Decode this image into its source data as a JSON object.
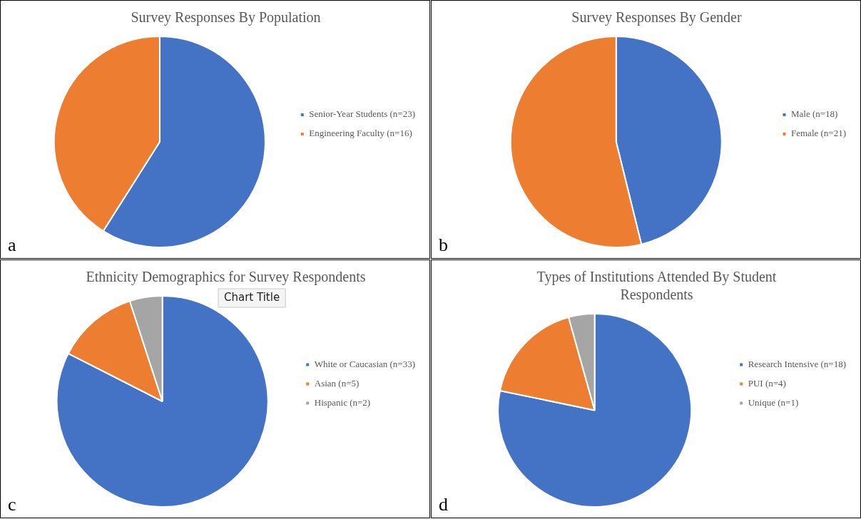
{
  "chart_data": [
    {
      "type": "pie",
      "title": "Survey Responses By Population",
      "categories": [
        "Senior-Year Students (n=23)",
        "Engineering Faculty (n=16)"
      ],
      "values": [
        23,
        16
      ],
      "colors": [
        "#4472c4",
        "#ed7d31"
      ],
      "legend": "right",
      "annotations": [
        "a"
      ]
    },
    {
      "type": "pie",
      "title": "Survey Responses By Gender",
      "categories": [
        "Male (n=18)",
        "Female (n=21)"
      ],
      "values": [
        18,
        21
      ],
      "colors": [
        "#4472c4",
        "#ed7d31"
      ],
      "legend": "right",
      "annotations": [
        "b"
      ]
    },
    {
      "type": "pie",
      "title": "Ethnicity Demographics for Survey Respondents",
      "categories": [
        "White or Caucasian (n=33)",
        "Asian (n=5)",
        "Hispanic (n=2)"
      ],
      "values": [
        33,
        5,
        2
      ],
      "colors": [
        "#4472c4",
        "#ed7d31",
        "#a5a5a5"
      ],
      "legend": "right",
      "annotations": [
        "c",
        "Chart Title"
      ]
    },
    {
      "type": "pie",
      "title": "Types of Institutions Attended By Student Respondents",
      "categories": [
        "Research Intensive (n=18)",
        "PUI (n=4)",
        "Unique (n=1)"
      ],
      "values": [
        18,
        4,
        1
      ],
      "colors": [
        "#4472c4",
        "#ed7d31",
        "#a5a5a5"
      ],
      "legend": "right",
      "annotations": [
        "d"
      ]
    }
  ]
}
